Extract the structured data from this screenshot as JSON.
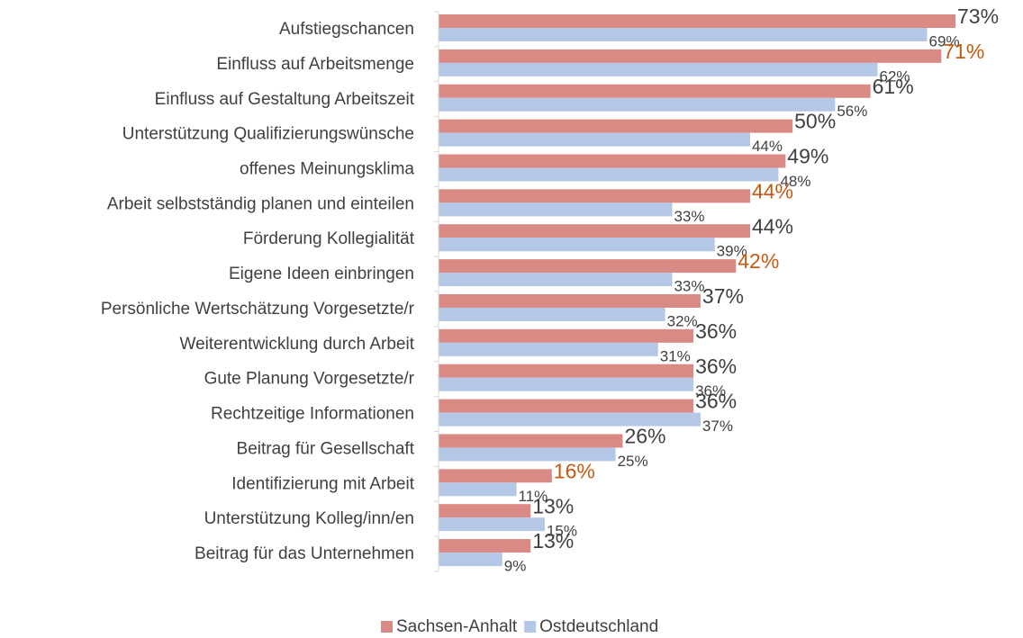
{
  "chart_data": {
    "type": "hbar",
    "categories": [
      "Aufstiegschancen",
      "Einfluss auf Arbeitsmenge",
      "Einfluss auf Gestaltung Arbeitszeit",
      "Unterstützung Qualifizierungswünsche",
      "offenes Meinungsklima",
      "Arbeit selbstständig planen und einteilen",
      "Förderung Kollegialität",
      "Eigene Ideen einbringen",
      "Persönliche Wertschätzung Vorgesetzte/r",
      "Weiterentwicklung durch Arbeit",
      "Gute Planung Vorgesetzte/r",
      "Rechtzeitige Informationen",
      "Beitrag für Gesellschaft",
      "Identifizierung mit Arbeit",
      "Unterstützung Kolleg/inn/en",
      "Beitrag für das Unternehmen"
    ],
    "series": [
      {
        "name": "Sachsen-Anhalt",
        "color": "#da8a85",
        "values": [
          73,
          71,
          61,
          50,
          49,
          44,
          44,
          42,
          37,
          36,
          36,
          36,
          26,
          16,
          13,
          13
        ],
        "value_labels": [
          "73%",
          "71%",
          "61%",
          "50%",
          "49%",
          "44%",
          "44%",
          "42%",
          "37%",
          "36%",
          "36%",
          "36%",
          "26%",
          "16%",
          "13%",
          "13%"
        ],
        "value_label_colors": [
          "#404040",
          "#c55a11",
          "#404040",
          "#404040",
          "#404040",
          "#c55a11",
          "#404040",
          "#c55a11",
          "#404040",
          "#404040",
          "#404040",
          "#404040",
          "#404040",
          "#c55a11",
          "#404040",
          "#404040"
        ]
      },
      {
        "name": "Ostdeutschland",
        "color": "#b4c7e7",
        "values": [
          69,
          62,
          56,
          44,
          48,
          33,
          39,
          33,
          32,
          31,
          36,
          37,
          25,
          11,
          15,
          9
        ],
        "value_labels": [
          "69%",
          "62%",
          "56%",
          "44%",
          "48%",
          "33%",
          "39%",
          "33%",
          "32%",
          "31%",
          "36%",
          "37%",
          "25%",
          "11%",
          "15%",
          "9%"
        ]
      }
    ],
    "legend": "bottom"
  }
}
